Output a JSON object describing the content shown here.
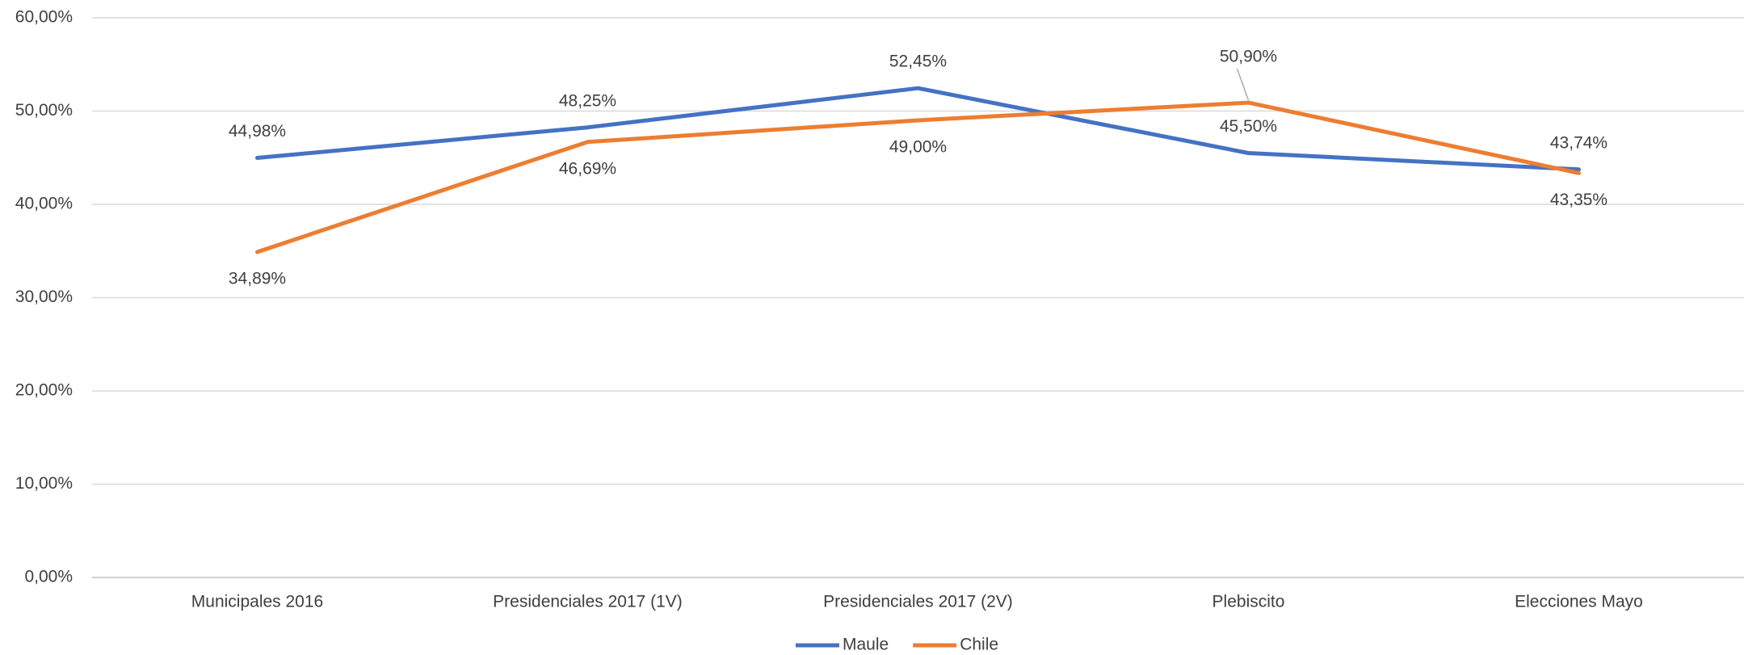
{
  "chart_data": {
    "type": "line",
    "categories": [
      "Municipales 2016",
      "Presidenciales 2017 (1V)",
      "Presidenciales 2017 (2V)",
      "Plebiscito",
      "Elecciones Mayo"
    ],
    "series": [
      {
        "name": "Maule",
        "color": "#4472c4",
        "values": [
          44.98,
          48.25,
          52.45,
          45.5,
          43.74
        ],
        "value_labels": [
          "44,98%",
          "48,25%",
          "52,45%",
          "45,50%",
          "43,74%"
        ]
      },
      {
        "name": "Chile",
        "color": "#ed7d31",
        "values": [
          34.89,
          46.69,
          49.0,
          50.9,
          43.35
        ],
        "value_labels": [
          "34,89%",
          "46,69%",
          "49,00%",
          "50,90%",
          "43,35%"
        ]
      }
    ],
    "ylim": [
      0,
      60
    ],
    "yticks": [
      {
        "value": 0,
        "label": "0,00%"
      },
      {
        "value": 10,
        "label": "10,00%"
      },
      {
        "value": 20,
        "label": "20,00%"
      },
      {
        "value": 30,
        "label": "30,00%"
      },
      {
        "value": 40,
        "label": "40,00%"
      },
      {
        "value": 50,
        "label": "50,00%"
      },
      {
        "value": 60,
        "label": "60,00%"
      }
    ],
    "grid": true,
    "legend": "bottom"
  }
}
